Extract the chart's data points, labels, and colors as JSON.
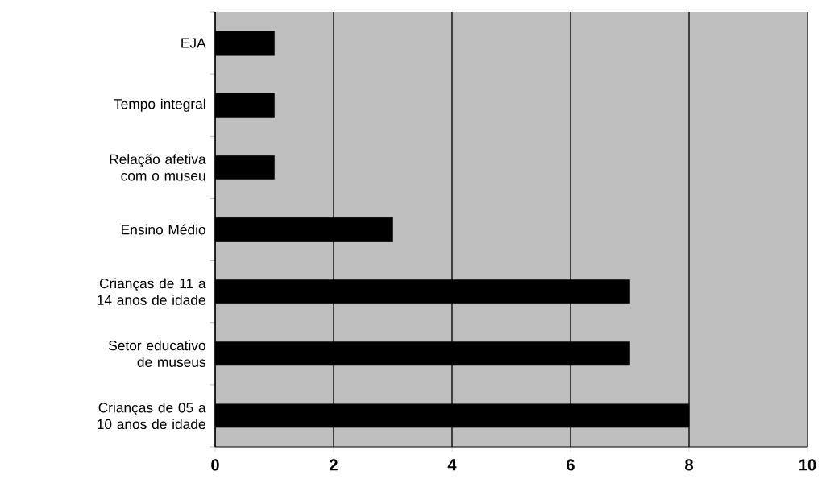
{
  "chart_data": {
    "type": "bar",
    "orientation": "horizontal",
    "categories": [
      "EJA",
      "Tempo integral",
      "Relação afetiva com o museu",
      "Ensino Médio",
      "Crianças de 11 a 14 anos de idade",
      "Setor educativo de museus",
      "Crianças de 05 a 10 anos de idade"
    ],
    "values": [
      1,
      1,
      1,
      3,
      7,
      7,
      8
    ],
    "color": "#000000",
    "xlim": [
      0,
      10
    ],
    "xticks": [
      0,
      2,
      4,
      6,
      8,
      10
    ],
    "grid": "x"
  }
}
